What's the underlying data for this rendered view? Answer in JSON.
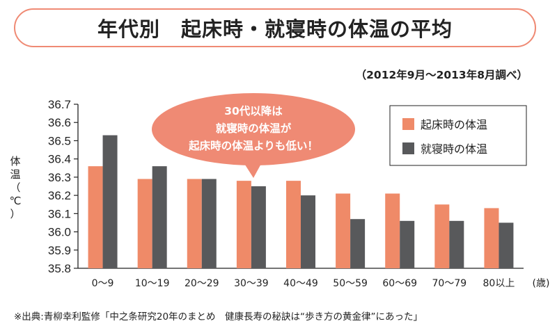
{
  "header": {
    "title": "年代別　起床時・就寝時の体温の平均",
    "period": "（2012年9月～2013年8月調べ）"
  },
  "footer": {
    "source": "※出典:青柳幸利監修「中之条研究20年のまとめ　健康長寿の秘訣は“歩き方の黄金律”にあった」"
  },
  "colors": {
    "wake": "#ef8a68",
    "sleep": "#58595b",
    "accent": "#ef8a74"
  },
  "chart_data": {
    "type": "bar",
    "ylabel_chars": [
      "体",
      "温",
      "（",
      "℃",
      "）"
    ],
    "xunit": "(歳)",
    "ylim": [
      35.8,
      36.7
    ],
    "yticks": [
      "36.7",
      "36.6",
      "36.5",
      "36.4",
      "36.3",
      "36.2",
      "36.1",
      "36.0",
      "35.9",
      "35.8"
    ],
    "categories": [
      "0〜9",
      "10〜19",
      "20〜29",
      "30〜39",
      "40〜49",
      "50〜59",
      "60〜69",
      "70〜79",
      "80以上"
    ],
    "series": [
      {
        "name": "起床時の体温",
        "values": [
          36.36,
          36.29,
          36.29,
          36.28,
          36.28,
          36.21,
          36.21,
          36.15,
          36.13
        ]
      },
      {
        "name": "就寝時の体温",
        "values": [
          36.53,
          36.36,
          36.29,
          36.25,
          36.2,
          36.07,
          36.06,
          36.06,
          36.05
        ]
      }
    ],
    "legend_position": "top-right",
    "grid": false,
    "annotation": [
      "30代以降は",
      "就寝時の体温が",
      "起床時の体温よりも低い！"
    ]
  }
}
